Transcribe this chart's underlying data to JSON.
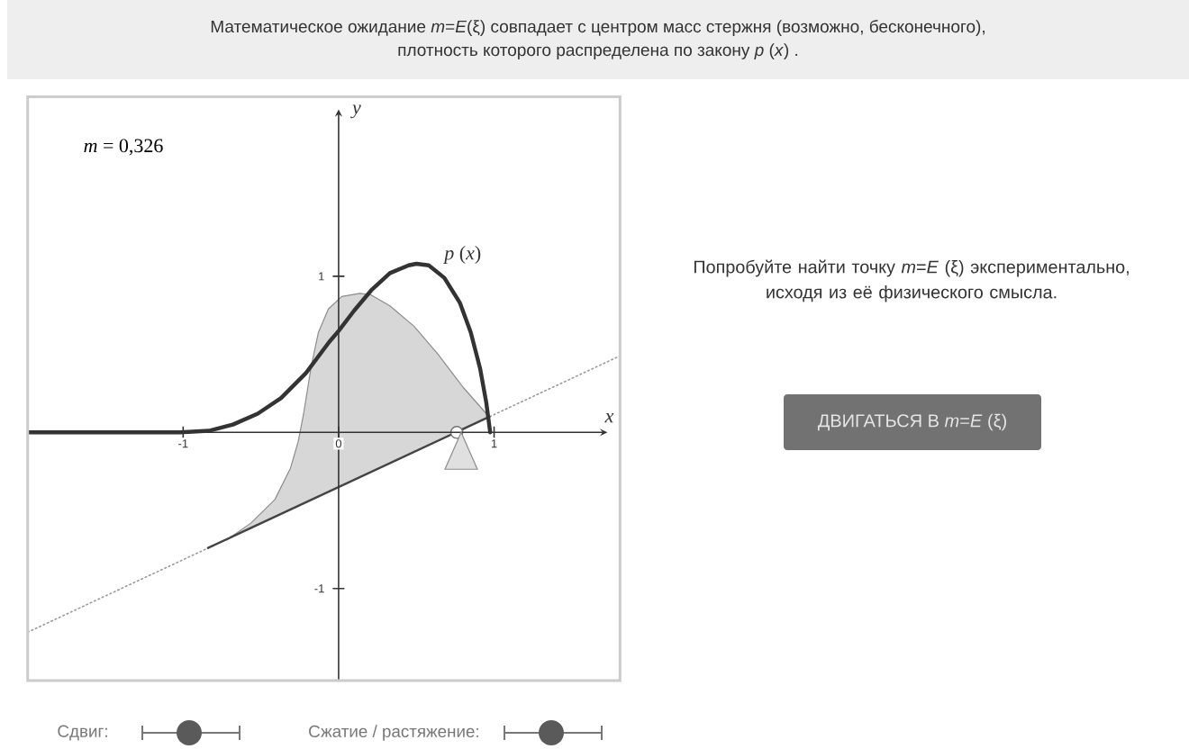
{
  "chart_data": {
    "type": "line",
    "title": "Математическое ожидание *m*=*E*(ξ) совпадает с центром масс стержня (возможно, бесконечного), плотность которого распределена по закону *p* (*x*) .",
    "xlabel": "x",
    "ylabel": "y",
    "xlim": [
      -2.0,
      1.81
    ],
    "ylim": [
      -1.59,
      2.15
    ],
    "xticks": [
      -1,
      0,
      1
    ],
    "yticks": [
      -1,
      1
    ],
    "series": [
      {
        "line_style": "dotted",
        "color": "#999999",
        "x": [
          -2.0,
          1.81
        ],
        "values": [
          -1.28,
          0.49
        ]
      },
      {
        "color": "#8c8c8c",
        "x": [
          -0.72,
          -0.563,
          -0.41,
          -0.31,
          -0.26,
          -0.225,
          -0.175,
          -0.13,
          -0.066,
          0.02,
          0.136,
          0.21,
          0.33,
          0.485,
          0.64,
          0.8,
          0.95,
          0.97
        ],
        "values": [
          -0.69,
          -0.58,
          -0.43,
          -0.23,
          -0.06,
          0.12,
          0.43,
          0.64,
          0.79,
          0.87,
          0.89,
          0.88,
          0.81,
          0.68,
          0.5,
          0.29,
          0.12,
          0.1
        ],
        "upper": [
          -0.69,
          -0.58,
          -0.43,
          -0.23,
          -0.06,
          0.12,
          0.43,
          0.64,
          0.79,
          0.87,
          0.89,
          0.88,
          0.81,
          0.68,
          0.5,
          0.29,
          0.12,
          0.1
        ],
        "lower": [
          -0.69,
          -0.61,
          -0.54,
          -0.5,
          -0.47,
          -0.46,
          -0.43,
          -0.41,
          -0.38,
          -0.34,
          -0.29,
          -0.25,
          -0.2,
          -0.13,
          -0.05,
          0.02,
          0.09,
          0.1
        ]
      },
      {
        "color": "#444444",
        "x": [
          -0.84,
          0.97
        ],
        "values": [
          -0.74,
          0.1
        ]
      },
      {
        "name": "*p* (*x*)",
        "color": "#333333",
        "x": [
          -2.0,
          -1.02,
          -0.835,
          -0.68,
          -0.52,
          -0.37,
          -0.21,
          -0.06,
          0,
          0.1,
          0.21,
          0.33,
          0.45,
          0.5,
          0.58,
          0.68,
          0.78,
          0.85,
          0.91,
          0.95,
          0.975
        ],
        "values": [
          0,
          0,
          0.01,
          0.05,
          0.12,
          0.22,
          0.38,
          0.58,
          0.65,
          0.78,
          0.91,
          1.02,
          1.07,
          1.08,
          1.07,
          0.99,
          0.83,
          0.64,
          0.41,
          0.19,
          0
        ]
      },
      {
        "type": "scatter",
        "marker": "circle",
        "color": "#ffffff",
        "x": [
          0.76
        ],
        "values": [
          0
        ]
      }
    ],
    "annotations": [
      "*m* = 0,326",
      "Попробуйте найти точку *m*=*E* (ξ) экспериментально, исходя из её физического смысла.",
      "ДВИГАТЬСЯ В *m*=*E* (ξ)",
      "Сдвиг:",
      "Сжатие / растяжение:"
    ]
  }
}
